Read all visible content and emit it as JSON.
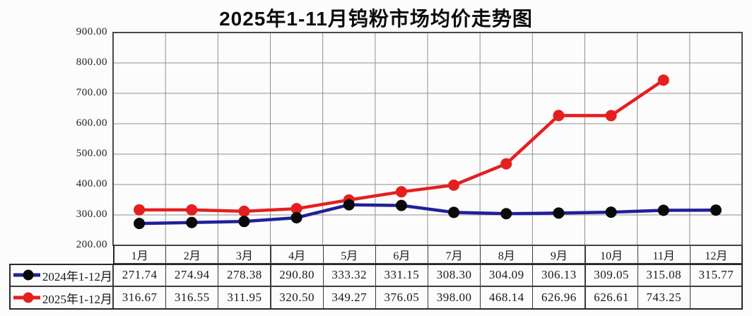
{
  "title": "2025年1-11月钨粉市场均价走势图",
  "chart_data": {
    "type": "line",
    "title": "2025年1-11月钨粉市场均价走势图",
    "categories": [
      "1月",
      "2月",
      "3月",
      "4月",
      "5月",
      "6月",
      "7月",
      "8月",
      "9月",
      "10月",
      "11月",
      "12月"
    ],
    "series": [
      {
        "name": "2024年1-12月",
        "line_color": "#20209a",
        "marker_color": "#0a0a0a",
        "values": [
          271.74,
          274.94,
          278.38,
          290.8,
          333.32,
          331.15,
          308.3,
          304.09,
          306.13,
          309.05,
          315.08,
          315.77
        ]
      },
      {
        "name": "2025年1-12月",
        "line_color": "#e51f1f",
        "marker_color": "#e51f1f",
        "values": [
          316.67,
          316.55,
          311.95,
          320.5,
          349.27,
          376.05,
          398.0,
          468.14,
          626.96,
          626.61,
          743.25,
          null
        ]
      }
    ],
    "ylim": [
      200,
      900
    ],
    "ytick_step": 100,
    "ytick_decimals": 2,
    "grid": true,
    "grid_color": "#8f8f8f",
    "axis_border_color": "#4a4a4a",
    "legend_position": "table-left"
  }
}
